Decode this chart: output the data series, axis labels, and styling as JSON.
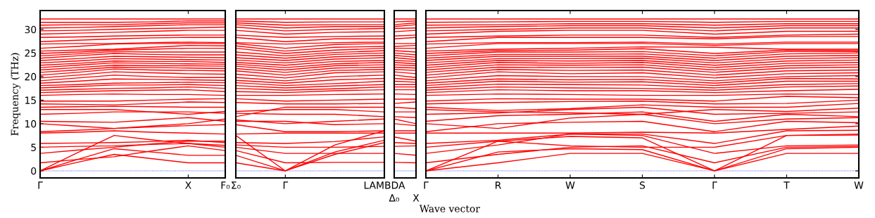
{
  "chart_data": [
    {
      "type": "line",
      "color": "#ff0000",
      "ylabel": "Frequency (THz)",
      "categories": [
        "Γ",
        null,
        null,
        null,
        "X",
        "F₀"
      ],
      "ylim": [
        -1.5,
        34
      ],
      "yticks": [
        0,
        5,
        10,
        15,
        20,
        25,
        30
      ],
      "marker": "none",
      "line_style": "solid",
      "ref_lines": [
        {
          "axis": "y",
          "value": 0,
          "label": null,
          "color": "#0000ff",
          "line_style": "dotted"
        }
      ],
      "series": [
        {
          "values": [
            0,
            1.8,
            3.5,
            2.6,
            1.7,
            1.7
          ]
        },
        {
          "values": [
            0,
            2.4,
            4.7,
            4.0,
            3.3,
            3.3
          ]
        },
        {
          "values": [
            0,
            3.8,
            7.5,
            6.6,
            5.8,
            5.0
          ]
        },
        {
          "values": [
            1.7,
            2.4,
            3.0,
            4.2,
            5.3,
            4.3
          ]
        },
        {
          "values": [
            3.7,
            4.4,
            5.0,
            5.7,
            6.3,
            6.3
          ]
        },
        {
          "values": [
            5.0,
            5.2,
            5.3,
            5.6,
            5.8,
            5.4
          ]
        },
        {
          "values": [
            5.8,
            5.9,
            6.0,
            6.2,
            6.5,
            6.0
          ]
        },
        {
          "values": [
            8.0,
            8.2,
            8.5,
            8.2,
            8.0,
            7.8
          ]
        },
        {
          "values": [
            8.3,
            8.6,
            9.0,
            9.3,
            9.6,
            9.8
          ]
        },
        {
          "values": [
            10.0,
            9.5,
            9.0,
            9.5,
            10.0,
            11.0
          ]
        },
        {
          "values": [
            10.5,
            10.4,
            10.3,
            10.8,
            11.3,
            10.5
          ]
        },
        {
          "values": [
            12.0,
            12.2,
            12.5,
            12.5,
            12.5,
            12.2
          ]
        },
        {
          "values": [
            13.0,
            13.0,
            13.0,
            12.5,
            12.0,
            12.6
          ]
        },
        {
          "values": [
            13.5,
            13.6,
            13.7,
            13.6,
            13.5,
            13.5
          ]
        },
        {
          "values": [
            14.2,
            14.1,
            14.0,
            14.3,
            14.6,
            14.5
          ]
        },
        {
          "values": [
            14.8,
            14.8,
            14.8,
            15.0,
            15.2,
            15.3
          ]
        },
        {
          "values": [
            16.0,
            16.2,
            16.3,
            16.2,
            16.2,
            16.0
          ]
        },
        {
          "values": [
            16.6,
            16.8,
            17.0,
            17.1,
            17.2,
            16.8
          ]
        },
        {
          "values": [
            17.1,
            17.3,
            17.5,
            17.6,
            17.8,
            17.5
          ]
        },
        {
          "values": [
            17.6,
            17.9,
            18.2,
            18.2,
            18.3,
            18.1
          ]
        },
        {
          "values": [
            18.1,
            18.3,
            18.6,
            18.7,
            18.8,
            18.7
          ]
        },
        {
          "values": [
            18.6,
            19.0,
            19.5,
            19.4,
            19.3,
            19.2
          ]
        },
        {
          "values": [
            19.1,
            19.7,
            20.3,
            20.0,
            19.8,
            19.8
          ]
        },
        {
          "values": [
            19.7,
            20.3,
            21.0,
            20.8,
            20.6,
            20.5
          ]
        },
        {
          "values": [
            20.3,
            20.9,
            21.6,
            21.4,
            21.3,
            21.2
          ]
        },
        {
          "values": [
            20.9,
            21.4,
            22.0,
            21.9,
            21.8,
            21.7
          ]
        },
        {
          "values": [
            21.4,
            21.9,
            22.4,
            22.3,
            22.3,
            22.2
          ]
        },
        {
          "values": [
            21.9,
            22.4,
            22.9,
            22.8,
            22.7,
            22.6
          ]
        },
        {
          "values": [
            22.4,
            22.8,
            23.3,
            23.2,
            23.2,
            23.0
          ]
        },
        {
          "values": [
            22.9,
            23.3,
            23.8,
            23.7,
            23.6,
            23.5
          ]
        },
        {
          "values": [
            23.4,
            23.8,
            24.3,
            24.2,
            24.1,
            24.0
          ]
        },
        {
          "values": [
            23.9,
            24.4,
            24.9,
            24.7,
            24.6,
            24.6
          ]
        },
        {
          "values": [
            24.4,
            24.8,
            25.3,
            25.2,
            25.2,
            25.2
          ]
        },
        {
          "values": [
            24.9,
            25.2,
            25.6,
            25.8,
            26.0,
            26.0
          ]
        },
        {
          "values": [
            25.4,
            25.6,
            25.8,
            26.2,
            26.6,
            26.5
          ]
        },
        {
          "values": [
            26.0,
            26.4,
            26.9,
            27.0,
            27.0,
            27.0
          ]
        },
        {
          "values": [
            26.9,
            27.0,
            27.0,
            27.2,
            27.3,
            27.2
          ]
        },
        {
          "values": [
            27.4,
            27.7,
            28.0,
            28.2,
            28.3,
            28.3
          ]
        },
        {
          "values": [
            28.3,
            28.4,
            28.6,
            28.7,
            28.8,
            28.8
          ]
        },
        {
          "values": [
            29.0,
            29.2,
            29.4,
            29.6,
            29.8,
            29.8
          ]
        },
        {
          "values": [
            29.7,
            29.8,
            30.0,
            30.2,
            30.3,
            30.5
          ]
        },
        {
          "values": [
            30.3,
            30.4,
            30.6,
            30.8,
            31.0,
            31.0
          ]
        },
        {
          "values": [
            30.9,
            31.0,
            31.0,
            31.2,
            31.4,
            31.4
          ]
        },
        {
          "values": [
            31.5,
            31.5,
            31.5,
            31.6,
            31.8,
            31.8
          ]
        },
        {
          "values": [
            32.2,
            32.2,
            32.2,
            32.2,
            32.2,
            32.2
          ]
        }
      ]
    },
    {
      "type": "line",
      "color": "#ff0000",
      "categories": [
        "Σ₀",
        "Γ",
        null,
        "LAMBDA"
      ],
      "ylim": [
        -1.5,
        34
      ],
      "yticks": [
        0,
        5,
        10,
        15,
        20,
        25,
        30
      ],
      "tick_labels": "x",
      "marker": "none",
      "line_style": "solid",
      "ref_lines": [
        {
          "axis": "y",
          "value": 0,
          "label": null,
          "color": "#0000ff",
          "line_style": "dotted"
        }
      ],
      "series": [
        {
          "values": [
            1.7,
            0,
            3.5,
            6.0
          ]
        },
        {
          "values": [
            3.3,
            0,
            4.0,
            6.5
          ]
        },
        {
          "values": [
            7.5,
            0,
            5.5,
            8.5
          ]
        },
        {
          "values": [
            4.3,
            1.7,
            1.8,
            1.8
          ]
        },
        {
          "values": [
            5.0,
            3.7,
            3.7,
            3.7
          ]
        },
        {
          "values": [
            5.5,
            5.0,
            5.0,
            5.2
          ]
        },
        {
          "values": [
            6.0,
            5.8,
            6.2,
            7.2
          ]
        },
        {
          "values": [
            7.8,
            8.0,
            8.0,
            8.0
          ]
        },
        {
          "values": [
            9.8,
            8.3,
            8.3,
            8.5
          ]
        },
        {
          "values": [
            10.8,
            10.0,
            10.5,
            11.0
          ]
        },
        {
          "values": [
            10.5,
            10.5,
            9.8,
            10.0
          ]
        },
        {
          "values": [
            12.2,
            12.0,
            12.0,
            11.5
          ]
        },
        {
          "values": [
            12.6,
            13.0,
            13.0,
            12.5
          ]
        },
        {
          "values": [
            11.5,
            13.5,
            13.5,
            13.5
          ]
        },
        {
          "values": [
            14.5,
            14.2,
            14.2,
            14.3
          ]
        },
        {
          "values": [
            15.3,
            14.8,
            15.0,
            15.2
          ]
        },
        {
          "values": [
            16.0,
            16.0,
            16.2,
            16.3
          ]
        },
        {
          "values": [
            16.8,
            16.6,
            17.0,
            17.2
          ]
        },
        {
          "values": [
            17.5,
            17.1,
            17.4,
            17.8
          ]
        },
        {
          "values": [
            18.1,
            17.6,
            18.0,
            18.3
          ]
        },
        {
          "values": [
            18.7,
            18.1,
            18.5,
            19.0
          ]
        },
        {
          "values": [
            19.2,
            18.6,
            19.3,
            19.6
          ]
        },
        {
          "values": [
            19.8,
            19.1,
            20.0,
            20.3
          ]
        },
        {
          "values": [
            20.5,
            19.7,
            20.8,
            21.0
          ]
        },
        {
          "values": [
            21.2,
            20.3,
            21.3,
            21.5
          ]
        },
        {
          "values": [
            21.7,
            20.9,
            21.8,
            22.0
          ]
        },
        {
          "values": [
            22.2,
            21.4,
            22.3,
            22.5
          ]
        },
        {
          "values": [
            22.6,
            21.9,
            22.7,
            23.0
          ]
        },
        {
          "values": [
            23.0,
            22.4,
            23.2,
            23.4
          ]
        },
        {
          "values": [
            23.5,
            22.9,
            23.7,
            24.0
          ]
        },
        {
          "values": [
            24.0,
            23.4,
            24.2,
            24.5
          ]
        },
        {
          "values": [
            24.6,
            23.9,
            24.7,
            25.0
          ]
        },
        {
          "values": [
            25.2,
            24.4,
            25.1,
            25.5
          ]
        },
        {
          "values": [
            26.0,
            24.9,
            25.6,
            26.0
          ]
        },
        {
          "values": [
            26.5,
            25.4,
            26.2,
            26.4
          ]
        },
        {
          "values": [
            27.0,
            26.0,
            26.8,
            27.0
          ]
        },
        {
          "values": [
            27.2,
            26.9,
            27.2,
            27.3
          ]
        },
        {
          "values": [
            28.3,
            27.4,
            28.0,
            28.0
          ]
        },
        {
          "values": [
            28.8,
            28.3,
            28.5,
            28.6
          ]
        },
        {
          "values": [
            29.8,
            29.0,
            29.4,
            29.5
          ]
        },
        {
          "values": [
            30.5,
            29.7,
            30.0,
            30.2
          ]
        },
        {
          "values": [
            31.0,
            30.3,
            30.6,
            30.6
          ]
        },
        {
          "values": [
            31.4,
            30.9,
            31.0,
            31.0
          ]
        },
        {
          "values": [
            31.8,
            31.5,
            31.6,
            31.6
          ]
        },
        {
          "values": [
            32.2,
            32.2,
            32.2,
            32.2
          ]
        }
      ]
    },
    {
      "type": "line",
      "color": "#ff0000",
      "categories": [
        "Δ₀",
        "X"
      ],
      "ylim": [
        -1.5,
        34
      ],
      "yticks": [
        0,
        5,
        10,
        15,
        20,
        25,
        30
      ],
      "tick_labels": "x",
      "marker": "none",
      "line_style": "solid",
      "ref_lines": [
        {
          "axis": "y",
          "value": 0,
          "label": null,
          "color": "#0000ff",
          "line_style": "dotted"
        }
      ],
      "series": [
        {
          "values": [
            1.8,
            1.7
          ]
        },
        {
          "values": [
            3.7,
            3.3
          ]
        },
        {
          "values": [
            5.2,
            5.3
          ]
        },
        {
          "values": [
            6.0,
            5.8
          ]
        },
        {
          "values": [
            7.2,
            6.3
          ]
        },
        {
          "values": [
            8.0,
            8.0
          ]
        },
        {
          "values": [
            8.5,
            8.5
          ]
        },
        {
          "values": [
            10.0,
            9.6
          ]
        },
        {
          "values": [
            11.0,
            10.0
          ]
        },
        {
          "values": [
            11.5,
            11.3
          ]
        },
        {
          "values": [
            12.5,
            12.5
          ]
        },
        {
          "values": [
            13.5,
            13.2
          ]
        },
        {
          "values": [
            14.3,
            14.6
          ]
        },
        {
          "values": [
            15.2,
            15.2
          ]
        },
        {
          "values": [
            16.3,
            16.2
          ]
        },
        {
          "values": [
            17.2,
            17.2
          ]
        },
        {
          "values": [
            17.8,
            17.8
          ]
        },
        {
          "values": [
            18.3,
            18.3
          ]
        },
        {
          "values": [
            19.0,
            18.8
          ]
        },
        {
          "values": [
            19.6,
            19.3
          ]
        },
        {
          "values": [
            20.3,
            19.8
          ]
        },
        {
          "values": [
            21.0,
            20.6
          ]
        },
        {
          "values": [
            21.5,
            21.3
          ]
        },
        {
          "values": [
            22.0,
            21.8
          ]
        },
        {
          "values": [
            22.5,
            22.3
          ]
        },
        {
          "values": [
            23.0,
            22.7
          ]
        },
        {
          "values": [
            23.4,
            23.2
          ]
        },
        {
          "values": [
            24.0,
            23.6
          ]
        },
        {
          "values": [
            24.5,
            24.1
          ]
        },
        {
          "values": [
            25.0,
            24.6
          ]
        },
        {
          "values": [
            25.5,
            25.2
          ]
        },
        {
          "values": [
            26.0,
            26.0
          ]
        },
        {
          "values": [
            26.4,
            26.6
          ]
        },
        {
          "values": [
            27.0,
            27.0
          ]
        },
        {
          "values": [
            28.0,
            28.3
          ]
        },
        {
          "values": [
            28.6,
            28.8
          ]
        },
        {
          "values": [
            29.5,
            29.8
          ]
        },
        {
          "values": [
            30.2,
            30.3
          ]
        },
        {
          "values": [
            30.6,
            31.0
          ]
        },
        {
          "values": [
            31.0,
            31.4
          ]
        },
        {
          "values": [
            31.6,
            31.8
          ]
        },
        {
          "values": [
            32.2,
            32.2
          ]
        }
      ]
    },
    {
      "type": "line",
      "color": "#ff0000",
      "xlabel": "Wave vector",
      "categories": [
        "Γ",
        "R",
        "W",
        "S",
        "Γ",
        "T",
        "W"
      ],
      "ylim": [
        -1.5,
        34
      ],
      "yticks": [
        0,
        5,
        10,
        15,
        20,
        25,
        30
      ],
      "tick_labels": "x",
      "marker": "none",
      "line_style": "solid",
      "ref_lines": [
        {
          "axis": "y",
          "value": 0,
          "label": null,
          "color": "#0000ff",
          "line_style": "dotted"
        }
      ],
      "series": [
        {
          "values": [
            0,
            1.7,
            3.7,
            3.7,
            0,
            3.7,
            3.7
          ]
        },
        {
          "values": [
            0,
            4.0,
            4.7,
            4.5,
            0,
            4.7,
            5.0
          ]
        },
        {
          "values": [
            0,
            6.3,
            7.3,
            7.0,
            0,
            7.5,
            7.6
          ]
        },
        {
          "values": [
            1.7,
            3.5,
            5.0,
            5.3,
            1.7,
            5.0,
            5.2
          ]
        },
        {
          "values": [
            3.7,
            5.5,
            7.8,
            7.5,
            3.7,
            5.3,
            5.5
          ]
        },
        {
          "values": [
            5.0,
            6.3,
            5.3,
            5.0,
            5.0,
            7.5,
            7.8
          ]
        },
        {
          "values": [
            5.8,
            6.5,
            7.8,
            7.8,
            5.8,
            8.5,
            8.6
          ]
        },
        {
          "values": [
            8.0,
            8.0,
            8.0,
            8.2,
            8.0,
            8.8,
            9.5
          ]
        },
        {
          "values": [
            8.3,
            10.0,
            10.3,
            10.5,
            8.3,
            10.5,
            10.2
          ]
        },
        {
          "values": [
            10.0,
            9.0,
            11.2,
            12.0,
            10.0,
            11.0,
            11.3
          ]
        },
        {
          "values": [
            10.5,
            11.7,
            12.0,
            12.5,
            10.5,
            12.0,
            11.5
          ]
        },
        {
          "values": [
            12.0,
            12.3,
            13.0,
            13.5,
            12.0,
            12.2,
            12.5
          ]
        },
        {
          "values": [
            13.0,
            12.5,
            12.3,
            12.0,
            13.0,
            12.6,
            13.3
          ]
        },
        {
          "values": [
            13.5,
            12.8,
            13.2,
            14.0,
            13.5,
            13.5,
            14.3
          ]
        },
        {
          "values": [
            14.2,
            14.5,
            14.7,
            14.8,
            14.2,
            14.3,
            15.0
          ]
        },
        {
          "values": [
            14.8,
            15.3,
            15.2,
            15.2,
            14.8,
            15.8,
            15.5
          ]
        },
        {
          "values": [
            16.0,
            16.3,
            16.2,
            16.0,
            16.0,
            16.3,
            16.2
          ]
        },
        {
          "values": [
            16.6,
            17.2,
            17.0,
            17.0,
            16.6,
            17.0,
            17.3
          ]
        },
        {
          "values": [
            17.1,
            17.8,
            17.6,
            17.5,
            17.1,
            17.8,
            18.0
          ]
        },
        {
          "values": [
            17.6,
            18.4,
            18.3,
            18.2,
            17.6,
            18.3,
            18.5
          ]
        },
        {
          "values": [
            18.1,
            19.0,
            18.8,
            18.9,
            18.1,
            19.0,
            19.0
          ]
        },
        {
          "values": [
            18.6,
            19.5,
            19.3,
            19.4,
            18.6,
            19.6,
            19.5
          ]
        },
        {
          "values": [
            19.1,
            20.2,
            20.0,
            20.0,
            19.1,
            20.0,
            20.2
          ]
        },
        {
          "values": [
            19.7,
            21.0,
            20.6,
            20.8,
            19.7,
            20.6,
            20.8
          ]
        },
        {
          "values": [
            20.3,
            21.5,
            21.3,
            21.4,
            20.3,
            21.2,
            21.4
          ]
        },
        {
          "values": [
            20.9,
            22.0,
            21.9,
            22.0,
            20.9,
            21.8,
            22.0
          ]
        },
        {
          "values": [
            21.4,
            22.5,
            22.4,
            22.5,
            21.4,
            22.3,
            22.5
          ]
        },
        {
          "values": [
            21.9,
            23.0,
            22.8,
            23.0,
            21.9,
            22.8,
            23.0
          ]
        },
        {
          "values": [
            22.4,
            23.4,
            23.3,
            23.4,
            22.4,
            23.3,
            23.5
          ]
        },
        {
          "values": [
            22.9,
            23.8,
            23.8,
            23.9,
            22.9,
            23.8,
            24.0
          ]
        },
        {
          "values": [
            23.4,
            24.3,
            24.3,
            24.3,
            23.4,
            24.3,
            24.5
          ]
        },
        {
          "values": [
            23.9,
            24.7,
            24.7,
            24.8,
            23.9,
            24.8,
            25.0
          ]
        },
        {
          "values": [
            24.4,
            25.2,
            25.2,
            25.3,
            24.4,
            25.3,
            25.3
          ]
        },
        {
          "values": [
            24.9,
            25.5,
            25.6,
            25.9,
            24.9,
            25.6,
            25.5
          ]
        },
        {
          "values": [
            25.4,
            25.8,
            26.0,
            26.3,
            26.2,
            25.8,
            25.8
          ]
        },
        {
          "values": [
            26.0,
            27.0,
            27.0,
            27.0,
            26.6,
            27.0,
            27.0
          ]
        },
        {
          "values": [
            26.9,
            27.2,
            27.2,
            27.3,
            26.9,
            27.3,
            27.3
          ]
        },
        {
          "values": [
            27.4,
            28.3,
            28.3,
            28.3,
            28.0,
            28.5,
            28.5
          ]
        },
        {
          "values": [
            28.3,
            28.6,
            28.8,
            28.8,
            28.3,
            28.8,
            29.0
          ]
        },
        {
          "values": [
            29.0,
            29.6,
            29.8,
            29.8,
            29.0,
            29.6,
            29.6
          ]
        },
        {
          "values": [
            29.7,
            30.0,
            30.3,
            30.3,
            29.7,
            30.3,
            30.3
          ]
        },
        {
          "values": [
            30.3,
            30.6,
            30.8,
            30.8,
            30.3,
            30.8,
            30.8
          ]
        },
        {
          "values": [
            30.9,
            31.0,
            31.2,
            31.2,
            30.9,
            31.2,
            31.2
          ]
        },
        {
          "values": [
            31.5,
            31.6,
            31.7,
            31.7,
            31.5,
            31.7,
            31.7
          ]
        },
        {
          "values": [
            32.2,
            32.2,
            32.2,
            32.2,
            32.2,
            32.2,
            32.2
          ]
        }
      ]
    }
  ]
}
